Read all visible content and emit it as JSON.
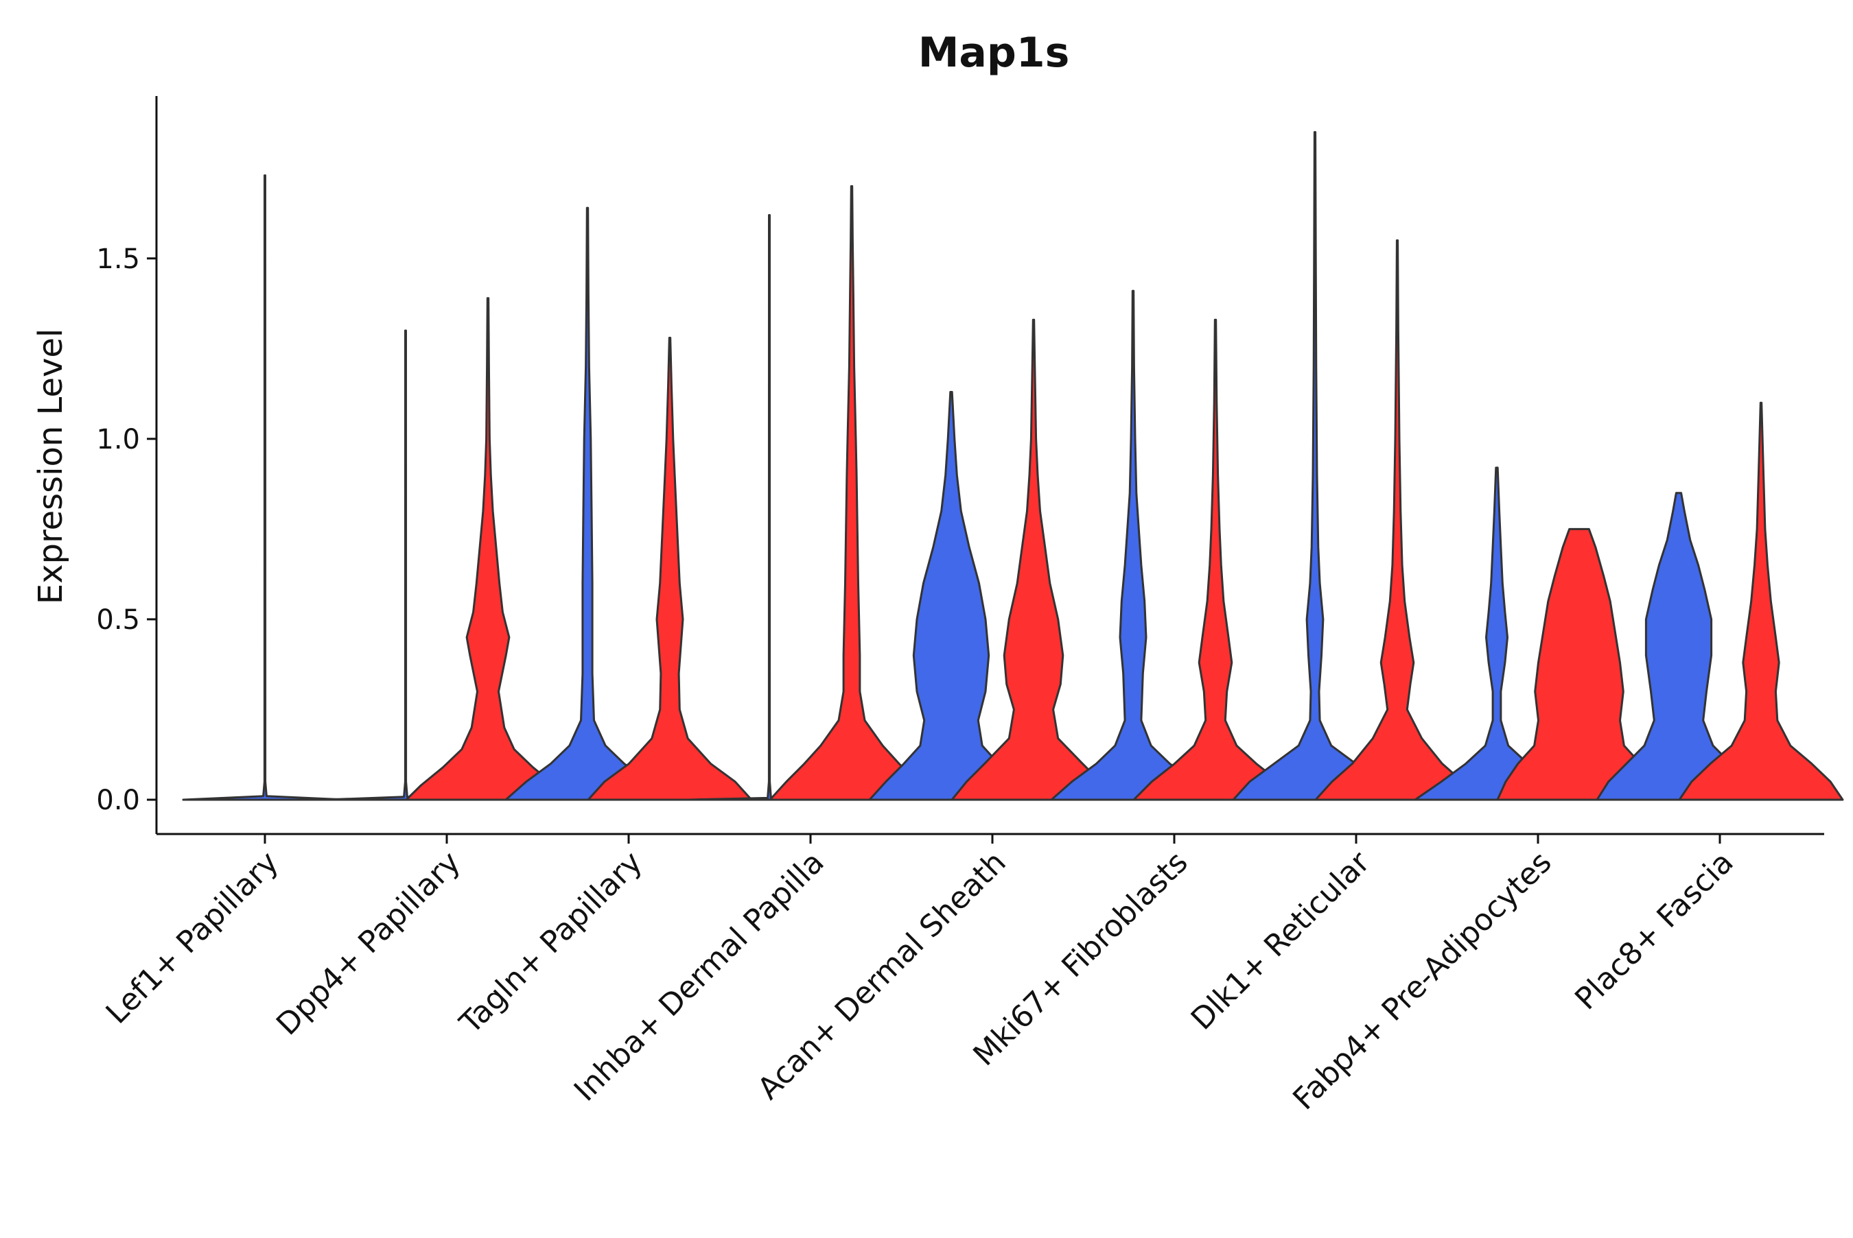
{
  "chart_data": {
    "type": "violin",
    "title": "Map1s",
    "xlabel": "",
    "ylabel": "Expression Level",
    "ylim": [
      -0.095,
      1.95
    ],
    "yticks": [
      0.0,
      0.5,
      1.0,
      1.5
    ],
    "ytick_labels": [
      "0.0",
      "0.5",
      "1.0",
      "1.5"
    ],
    "grid": false,
    "legend": "none",
    "colors": {
      "group_1": "#4169E9",
      "group_2": "#FF3030",
      "outline": "#333333"
    },
    "categories": [
      "Lef1+ Papillary",
      "Dpp4+ Papillary",
      "Tagln+ Papillary",
      "Inhba+ Dermal Papilla",
      "Acan+ Dermal Sheath",
      "Mki67+ Fibroblasts",
      "Dlk1+ Reticular",
      "Fabp4+ Pre-Adipocytes",
      "Plac8+ Fascia"
    ],
    "violins": [
      {
        "category": "Lef1+ Papillary",
        "group": "group_1",
        "max": 1.73,
        "profile": [
          [
            0,
            1.0
          ],
          [
            0.01,
            0.02
          ],
          [
            0.05,
            0.005
          ],
          [
            1.73,
            0.004
          ]
        ]
      },
      {
        "category": "Dpp4+ Papillary",
        "group": "group_1",
        "max": 1.3,
        "profile": [
          [
            0,
            1.0
          ],
          [
            0.008,
            0.02
          ],
          [
            0.05,
            0.005
          ],
          [
            1.3,
            0.004
          ]
        ]
      },
      {
        "category": "Dpp4+ Papillary",
        "group": "group_2",
        "max": 1.39,
        "profile": [
          [
            0,
            1.0
          ],
          [
            0.04,
            0.82
          ],
          [
            0.09,
            0.55
          ],
          [
            0.14,
            0.32
          ],
          [
            0.2,
            0.2
          ],
          [
            0.3,
            0.13
          ],
          [
            0.4,
            0.22
          ],
          [
            0.45,
            0.26
          ],
          [
            0.52,
            0.18
          ],
          [
            0.6,
            0.14
          ],
          [
            0.7,
            0.1
          ],
          [
            0.8,
            0.06
          ],
          [
            0.9,
            0.035
          ],
          [
            1.0,
            0.02
          ],
          [
            1.2,
            0.012
          ],
          [
            1.39,
            0.006
          ]
        ]
      },
      {
        "category": "Tagln+ Papillary",
        "group": "group_1",
        "max": 1.64,
        "profile": [
          [
            0,
            1.0
          ],
          [
            0.05,
            0.75
          ],
          [
            0.1,
            0.45
          ],
          [
            0.15,
            0.22
          ],
          [
            0.22,
            0.08
          ],
          [
            0.35,
            0.06
          ],
          [
            0.5,
            0.06
          ],
          [
            0.6,
            0.06
          ],
          [
            0.8,
            0.05
          ],
          [
            1.0,
            0.04
          ],
          [
            1.2,
            0.02
          ],
          [
            1.4,
            0.012
          ],
          [
            1.64,
            0.006
          ]
        ]
      },
      {
        "category": "Tagln+ Papillary",
        "group": "group_2",
        "max": 1.28,
        "profile": [
          [
            0,
            1.0
          ],
          [
            0.05,
            0.8
          ],
          [
            0.1,
            0.5
          ],
          [
            0.17,
            0.22
          ],
          [
            0.25,
            0.12
          ],
          [
            0.35,
            0.11
          ],
          [
            0.5,
            0.16
          ],
          [
            0.6,
            0.12
          ],
          [
            0.7,
            0.1
          ],
          [
            0.8,
            0.08
          ],
          [
            0.9,
            0.06
          ],
          [
            1.0,
            0.04
          ],
          [
            1.15,
            0.02
          ],
          [
            1.28,
            0.006
          ]
        ]
      },
      {
        "category": "Inhba+ Dermal Papilla",
        "group": "group_1",
        "max": 1.62,
        "profile": [
          [
            0,
            1.0
          ],
          [
            0.005,
            0.02
          ],
          [
            0.05,
            0.005
          ],
          [
            1.62,
            0.004
          ]
        ]
      },
      {
        "category": "Inhba+ Dermal Papilla",
        "group": "group_2",
        "max": 1.7,
        "profile": [
          [
            0,
            1.0
          ],
          [
            0.05,
            0.8
          ],
          [
            0.1,
            0.58
          ],
          [
            0.15,
            0.38
          ],
          [
            0.22,
            0.16
          ],
          [
            0.3,
            0.1
          ],
          [
            0.4,
            0.1
          ],
          [
            0.5,
            0.09
          ],
          [
            0.6,
            0.08
          ],
          [
            0.75,
            0.07
          ],
          [
            0.9,
            0.06
          ],
          [
            1.0,
            0.05
          ],
          [
            1.2,
            0.03
          ],
          [
            1.4,
            0.02
          ],
          [
            1.55,
            0.012
          ],
          [
            1.7,
            0.006
          ]
        ]
      },
      {
        "category": "Acan+ Dermal Sheath",
        "group": "group_1",
        "max": 1.13,
        "profile": [
          [
            0,
            1.0
          ],
          [
            0.05,
            0.8
          ],
          [
            0.1,
            0.58
          ],
          [
            0.15,
            0.38
          ],
          [
            0.22,
            0.33
          ],
          [
            0.3,
            0.42
          ],
          [
            0.4,
            0.46
          ],
          [
            0.5,
            0.42
          ],
          [
            0.6,
            0.34
          ],
          [
            0.7,
            0.22
          ],
          [
            0.8,
            0.12
          ],
          [
            0.9,
            0.07
          ],
          [
            1.0,
            0.04
          ],
          [
            1.13,
            0.01
          ]
        ]
      },
      {
        "category": "Acan+ Dermal Sheath",
        "group": "group_2",
        "max": 1.33,
        "profile": [
          [
            0,
            1.0
          ],
          [
            0.05,
            0.82
          ],
          [
            0.1,
            0.6
          ],
          [
            0.17,
            0.3
          ],
          [
            0.25,
            0.24
          ],
          [
            0.32,
            0.33
          ],
          [
            0.4,
            0.36
          ],
          [
            0.5,
            0.3
          ],
          [
            0.6,
            0.2
          ],
          [
            0.7,
            0.14
          ],
          [
            0.8,
            0.08
          ],
          [
            0.9,
            0.05
          ],
          [
            1.0,
            0.03
          ],
          [
            1.2,
            0.015
          ],
          [
            1.33,
            0.006
          ]
        ]
      },
      {
        "category": "Mki67+ Fibroblasts",
        "group": "group_1",
        "max": 1.41,
        "profile": [
          [
            0,
            1.0
          ],
          [
            0.05,
            0.75
          ],
          [
            0.1,
            0.45
          ],
          [
            0.15,
            0.22
          ],
          [
            0.22,
            0.1
          ],
          [
            0.35,
            0.12
          ],
          [
            0.45,
            0.16
          ],
          [
            0.55,
            0.14
          ],
          [
            0.65,
            0.1
          ],
          [
            0.75,
            0.07
          ],
          [
            0.85,
            0.04
          ],
          [
            1.0,
            0.025
          ],
          [
            1.2,
            0.012
          ],
          [
            1.41,
            0.006
          ]
        ]
      },
      {
        "category": "Mki67+ Fibroblasts",
        "group": "group_2",
        "max": 1.33,
        "profile": [
          [
            0,
            1.0
          ],
          [
            0.05,
            0.78
          ],
          [
            0.1,
            0.5
          ],
          [
            0.15,
            0.26
          ],
          [
            0.22,
            0.12
          ],
          [
            0.3,
            0.14
          ],
          [
            0.38,
            0.2
          ],
          [
            0.45,
            0.16
          ],
          [
            0.55,
            0.1
          ],
          [
            0.65,
            0.07
          ],
          [
            0.75,
            0.05
          ],
          [
            0.9,
            0.03
          ],
          [
            1.1,
            0.015
          ],
          [
            1.33,
            0.006
          ]
        ]
      },
      {
        "category": "Dlk1+ Reticular",
        "group": "group_1",
        "max": 1.85,
        "profile": [
          [
            0,
            1.0
          ],
          [
            0.05,
            0.8
          ],
          [
            0.1,
            0.5
          ],
          [
            0.15,
            0.2
          ],
          [
            0.22,
            0.06
          ],
          [
            0.3,
            0.05
          ],
          [
            0.4,
            0.08
          ],
          [
            0.5,
            0.1
          ],
          [
            0.6,
            0.06
          ],
          [
            0.7,
            0.04
          ],
          [
            0.9,
            0.025
          ],
          [
            1.2,
            0.015
          ],
          [
            1.5,
            0.01
          ],
          [
            1.85,
            0.005
          ]
        ]
      },
      {
        "category": "Dlk1+ Reticular",
        "group": "group_2",
        "max": 1.55,
        "profile": [
          [
            0,
            1.0
          ],
          [
            0.05,
            0.8
          ],
          [
            0.1,
            0.55
          ],
          [
            0.17,
            0.3
          ],
          [
            0.25,
            0.12
          ],
          [
            0.32,
            0.16
          ],
          [
            0.38,
            0.2
          ],
          [
            0.45,
            0.15
          ],
          [
            0.55,
            0.09
          ],
          [
            0.65,
            0.06
          ],
          [
            0.8,
            0.04
          ],
          [
            1.0,
            0.025
          ],
          [
            1.3,
            0.012
          ],
          [
            1.55,
            0.005
          ]
        ]
      },
      {
        "category": "Fabp4+ Pre-Adipocytes",
        "group": "group_1",
        "max": 0.92,
        "profile": [
          [
            0,
            1.0
          ],
          [
            0.05,
            0.68
          ],
          [
            0.1,
            0.38
          ],
          [
            0.15,
            0.14
          ],
          [
            0.22,
            0.05
          ],
          [
            0.3,
            0.05
          ],
          [
            0.38,
            0.1
          ],
          [
            0.45,
            0.13
          ],
          [
            0.52,
            0.1
          ],
          [
            0.6,
            0.07
          ],
          [
            0.7,
            0.05
          ],
          [
            0.8,
            0.03
          ],
          [
            0.92,
            0.01
          ]
        ]
      },
      {
        "category": "Fabp4+ Pre-Adipocytes",
        "group": "group_2",
        "max": 0.75,
        "profile": [
          [
            0,
            1.0
          ],
          [
            0.05,
            0.9
          ],
          [
            0.1,
            0.75
          ],
          [
            0.15,
            0.55
          ],
          [
            0.22,
            0.5
          ],
          [
            0.3,
            0.54
          ],
          [
            0.38,
            0.5
          ],
          [
            0.45,
            0.45
          ],
          [
            0.55,
            0.38
          ],
          [
            0.62,
            0.3
          ],
          [
            0.7,
            0.2
          ],
          [
            0.75,
            0.12
          ]
        ]
      },
      {
        "category": "Plac8+ Fascia",
        "group": "group_1",
        "max": 0.85,
        "profile": [
          [
            0,
            1.0
          ],
          [
            0.05,
            0.86
          ],
          [
            0.1,
            0.64
          ],
          [
            0.15,
            0.42
          ],
          [
            0.22,
            0.3
          ],
          [
            0.3,
            0.34
          ],
          [
            0.4,
            0.4
          ],
          [
            0.5,
            0.4
          ],
          [
            0.58,
            0.32
          ],
          [
            0.65,
            0.24
          ],
          [
            0.72,
            0.14
          ],
          [
            0.8,
            0.07
          ],
          [
            0.85,
            0.03
          ]
        ]
      },
      {
        "category": "Plac8+ Fascia",
        "group": "group_2",
        "max": 1.1,
        "profile": [
          [
            0,
            1.0
          ],
          [
            0.05,
            0.85
          ],
          [
            0.1,
            0.62
          ],
          [
            0.15,
            0.36
          ],
          [
            0.22,
            0.2
          ],
          [
            0.3,
            0.18
          ],
          [
            0.38,
            0.22
          ],
          [
            0.45,
            0.18
          ],
          [
            0.55,
            0.12
          ],
          [
            0.65,
            0.08
          ],
          [
            0.75,
            0.05
          ],
          [
            0.9,
            0.03
          ],
          [
            1.1,
            0.006
          ]
        ]
      }
    ]
  }
}
